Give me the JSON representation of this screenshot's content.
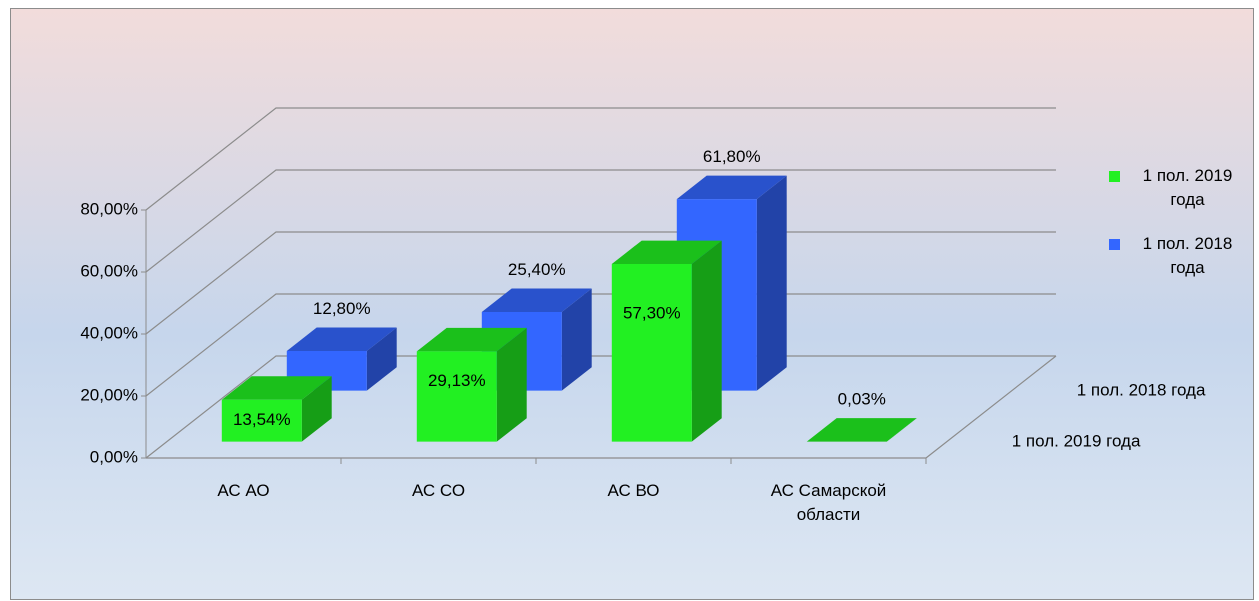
{
  "chart_data": {
    "type": "bar3d",
    "categories": [
      "АС АО",
      "АС СО",
      "АС ВО",
      "АС Самарской области"
    ],
    "series": [
      {
        "name": "1 пол. 2019 года",
        "color": "#22f022",
        "values": [
          13.54,
          29.13,
          57.3,
          0.03
        ],
        "value_labels": [
          "13,54%",
          "29,13%",
          "57,30%",
          "0,03%"
        ]
      },
      {
        "name": "1 пол. 2018 года",
        "color": "#3366ff",
        "values": [
          12.8,
          25.4,
          61.8,
          null
        ],
        "value_labels": [
          "12,80%",
          "25,40%",
          "61,80%",
          null
        ]
      }
    ],
    "ylim": [
      0,
      80
    ],
    "yticks": [
      {
        "value": 0,
        "label": "0,00%"
      },
      {
        "value": 20,
        "label": "20,00%"
      },
      {
        "value": 40,
        "label": "40,00%"
      },
      {
        "value": 60,
        "label": "60,00%"
      },
      {
        "value": 80,
        "label": "80,00%"
      }
    ],
    "grid": true,
    "legend": "right"
  }
}
